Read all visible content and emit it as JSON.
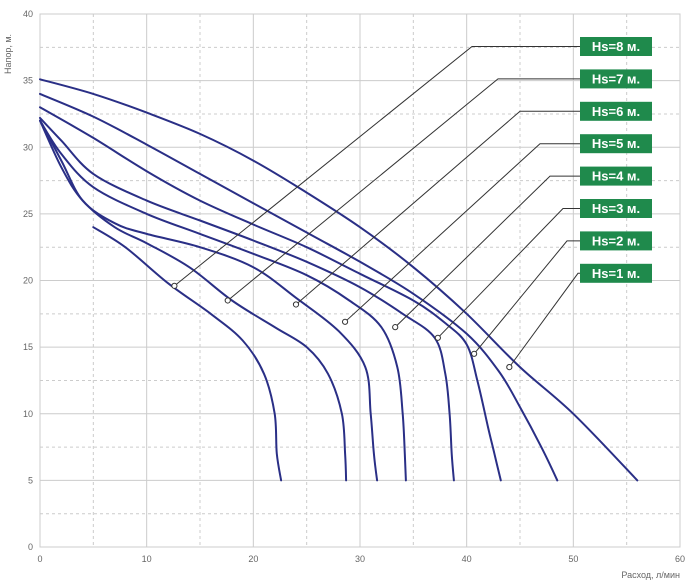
{
  "chart_data": {
    "type": "line",
    "xlabel": "Расход, л/мин",
    "ylabel": "Напор, м.",
    "xlim": [
      0,
      60
    ],
    "ylim": [
      0,
      40
    ],
    "x_ticks": [
      "0",
      "10",
      "20",
      "30",
      "40",
      "50",
      "60"
    ],
    "y_ticks": [
      "0",
      "5",
      "10",
      "15",
      "20",
      "25",
      "30",
      "35",
      "40"
    ],
    "grid": true,
    "colors": {
      "curve": "#2a2f86",
      "label_bg": "#1f8a4c",
      "label_text": "#ffffff",
      "leader": "#333333",
      "grid": "#cccccc"
    },
    "series": [
      {
        "name": "Hs=1 м.",
        "points": [
          [
            0,
            35.1
          ],
          [
            5,
            34
          ],
          [
            10,
            32.6
          ],
          [
            15,
            31
          ],
          [
            20,
            29
          ],
          [
            25,
            26.6
          ],
          [
            30,
            24
          ],
          [
            35,
            21
          ],
          [
            40,
            17.5
          ],
          [
            45,
            13.5
          ],
          [
            50,
            10
          ],
          [
            56,
            5
          ]
        ]
      },
      {
        "name": "Hs=2 м.",
        "points": [
          [
            0,
            34
          ],
          [
            5,
            32.3
          ],
          [
            10,
            30.2
          ],
          [
            15,
            28
          ],
          [
            20,
            25.8
          ],
          [
            25,
            23.6
          ],
          [
            30,
            21.4
          ],
          [
            35,
            19
          ],
          [
            40,
            16
          ],
          [
            43,
            13.2
          ],
          [
            45,
            10.5
          ],
          [
            47,
            7.5
          ],
          [
            48.5,
            5
          ]
        ]
      },
      {
        "name": "Hs=3 м.",
        "points": [
          [
            0,
            33
          ],
          [
            5,
            30.7
          ],
          [
            10,
            28.2
          ],
          [
            15,
            26
          ],
          [
            20,
            24.2
          ],
          [
            25,
            22.5
          ],
          [
            30,
            20.5
          ],
          [
            35,
            18.5
          ],
          [
            38,
            16.8
          ],
          [
            40,
            15.2
          ],
          [
            41,
            12.5
          ],
          [
            42,
            9
          ],
          [
            42.6,
            7
          ],
          [
            43.2,
            5
          ]
        ]
      },
      {
        "name": "Hs=4 м.",
        "points": [
          [
            0,
            32.2
          ],
          [
            2,
            30.5
          ],
          [
            5,
            28
          ],
          [
            10,
            26
          ],
          [
            15,
            24.5
          ],
          [
            20,
            23
          ],
          [
            25,
            21.4
          ],
          [
            30,
            19.5
          ],
          [
            34,
            17.5
          ],
          [
            37,
            15.7
          ],
          [
            38,
            13
          ],
          [
            38.4,
            10
          ],
          [
            38.6,
            7
          ],
          [
            38.8,
            5
          ]
        ]
      },
      {
        "name": "Hs=5 м.",
        "points": [
          [
            0,
            32
          ],
          [
            2,
            29.5
          ],
          [
            5,
            27
          ],
          [
            10,
            25
          ],
          [
            15,
            23.5
          ],
          [
            20,
            22
          ],
          [
            25,
            20.4
          ],
          [
            29,
            18.5
          ],
          [
            32,
            16.5
          ],
          [
            33.5,
            13.5
          ],
          [
            34,
            10
          ],
          [
            34.2,
            7
          ],
          [
            34.3,
            5
          ]
        ]
      },
      {
        "name": "Hs=6 м.",
        "points": [
          [
            0,
            32
          ],
          [
            2,
            29
          ],
          [
            4,
            26
          ],
          [
            7,
            24.3
          ],
          [
            10,
            23.5
          ],
          [
            15,
            22.5
          ],
          [
            20,
            21
          ],
          [
            24,
            18.7
          ],
          [
            28,
            16.2
          ],
          [
            30.5,
            13.5
          ],
          [
            31,
            10
          ],
          [
            31.3,
            7
          ],
          [
            31.6,
            5
          ]
        ]
      },
      {
        "name": "Hs=7 м.",
        "points": [
          [
            0,
            32
          ],
          [
            2,
            28.5
          ],
          [
            4,
            26
          ],
          [
            7,
            24
          ],
          [
            10,
            22.8
          ],
          [
            14,
            21
          ],
          [
            18,
            18.5
          ],
          [
            22,
            16.5
          ],
          [
            25,
            15
          ],
          [
            27,
            13
          ],
          [
            28.3,
            10
          ],
          [
            28.6,
            7
          ],
          [
            28.7,
            5
          ]
        ]
      },
      {
        "name": "Hs=8 м.",
        "points": [
          [
            5,
            24
          ],
          [
            8,
            22.5
          ],
          [
            12,
            19.8
          ],
          [
            16,
            17.5
          ],
          [
            19,
            15.5
          ],
          [
            21,
            13
          ],
          [
            22,
            10
          ],
          [
            22.2,
            7
          ],
          [
            22.6,
            5
          ]
        ]
      }
    ],
    "annotations": [
      {
        "label": "Hs=1 м.",
        "point": [
          44,
          13.5
        ]
      },
      {
        "label": "Hs=2 м.",
        "point": [
          40.7,
          14.5
        ]
      },
      {
        "label": "Hs=3 м.",
        "point": [
          37.3,
          15.7
        ]
      },
      {
        "label": "Hs=4 м.",
        "point": [
          33.3,
          16.5
        ]
      },
      {
        "label": "Hs=5 м.",
        "point": [
          28.6,
          16.9
        ]
      },
      {
        "label": "Hs=6 м.",
        "point": [
          24,
          18.2
        ]
      },
      {
        "label": "Hs=7 м.",
        "point": [
          17.6,
          18.5
        ]
      },
      {
        "label": "Hs=8 м.",
        "point": [
          12.6,
          19.6
        ]
      }
    ],
    "labels_order": [
      "Hs=8 м.",
      "Hs=7 м.",
      "Hs=6 м.",
      "Hs=5 м.",
      "Hs=4 м.",
      "Hs=3 м.",
      "Hs=2 м.",
      "Hs=1 м."
    ]
  }
}
